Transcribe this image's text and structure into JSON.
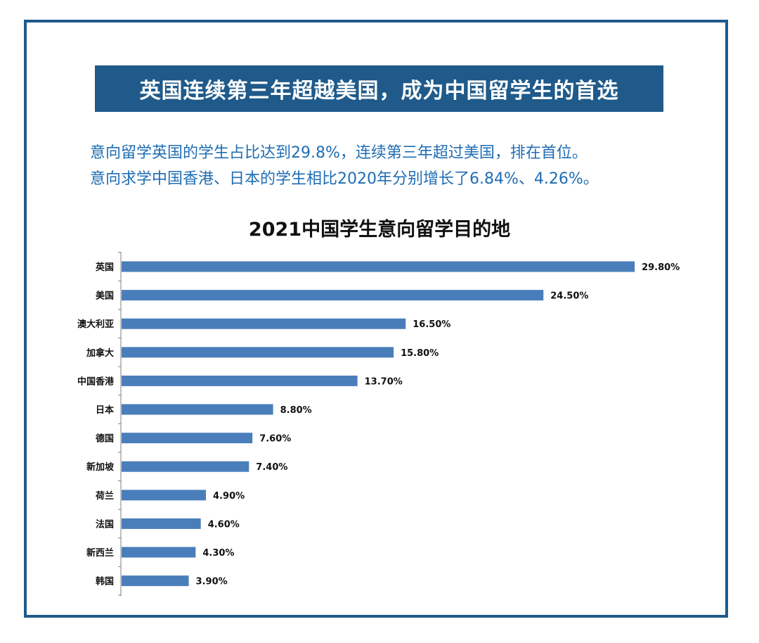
{
  "banner": {
    "text": "英国连续第三年超越美国，成为中国留学生的首选"
  },
  "subtitle": {
    "line1": "意向留学英国的学生占比达到29.8%，连续第三年超过美国，排在首位。",
    "line2": "意向求学中国香港、日本的学生相比2020年分别增长了6.84%、4.26%。"
  },
  "colors": {
    "frame": "#1f5a8a",
    "banner_bg": "#1f5a8a",
    "subtitle_text": "#1f6db4",
    "bar": "#4a7ebb"
  },
  "chart_data": {
    "type": "bar",
    "orientation": "horizontal",
    "title": "2021中国学生意向留学目的地",
    "categories": [
      "英国",
      "美国",
      "澳大利亚",
      "加拿大",
      "中国香港",
      "日本",
      "德国",
      "新加坡",
      "荷兰",
      "法国",
      "新西兰",
      "韩国"
    ],
    "values": [
      29.8,
      24.5,
      16.5,
      15.8,
      13.7,
      8.8,
      7.6,
      7.4,
      4.9,
      4.6,
      4.3,
      3.9
    ],
    "value_labels": [
      "29.80%",
      "24.50%",
      "16.50%",
      "15.80%",
      "13.70%",
      "8.80%",
      "7.60%",
      "7.40%",
      "4.90%",
      "4.60%",
      "4.30%",
      "3.90%"
    ],
    "xlim": [
      0,
      30
    ],
    "grid": false,
    "legend": "none"
  }
}
